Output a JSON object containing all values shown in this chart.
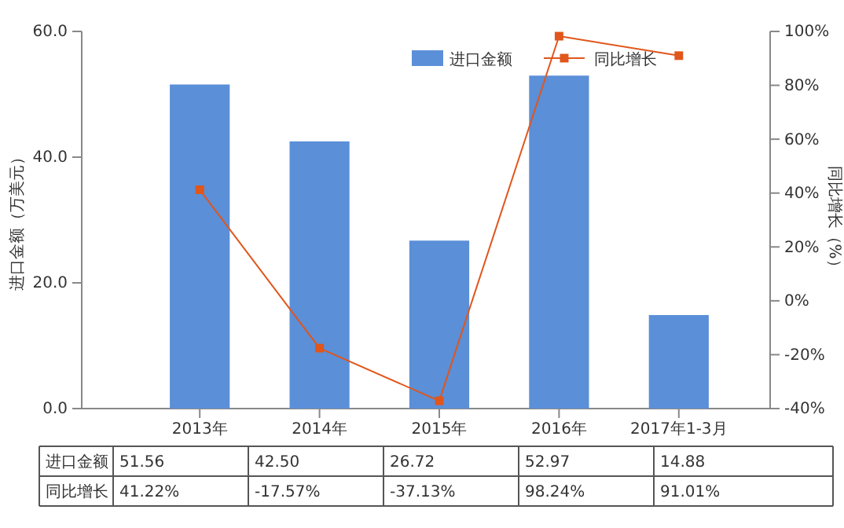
{
  "chart_data": {
    "type": "bar",
    "categories": [
      "2013年",
      "2014年",
      "2015年",
      "2016年",
      "2017年1-3月"
    ],
    "ylabel": "进口金额（万美元）",
    "y2label": "同比增长（%）",
    "ylim": [
      0,
      60
    ],
    "yticks": [
      {
        "value": 0,
        "label": "0.0"
      },
      {
        "value": 20,
        "label": "20.0"
      },
      {
        "value": 40,
        "label": "40.0"
      },
      {
        "value": 60,
        "label": "60.0"
      }
    ],
    "y2lim": [
      -40,
      100
    ],
    "y2ticks": [
      {
        "value": -40,
        "label": "-40%"
      },
      {
        "value": -20,
        "label": "-20%"
      },
      {
        "value": 0,
        "label": "0%"
      },
      {
        "value": 20,
        "label": "20%"
      },
      {
        "value": 40,
        "label": "40%"
      },
      {
        "value": 60,
        "label": "60%"
      },
      {
        "value": 80,
        "label": "80%"
      },
      {
        "value": 100,
        "label": "100%"
      }
    ],
    "legend": "top right",
    "marker": "square",
    "series": [
      {
        "name": "进口金额",
        "color": "#5b8fd8",
        "values": [
          51.56,
          42.5,
          26.72,
          52.97,
          14.88
        ],
        "value_labels": [
          "51.56",
          "42.50",
          "26.72",
          "52.97",
          "14.88"
        ]
      },
      {
        "name": "同比增长",
        "type": "line",
        "axis": "y2",
        "color": "#e0561b",
        "values": [
          41.22,
          -17.57,
          -37.13,
          98.24,
          91.01
        ],
        "value_labels": [
          "41.22%",
          "-17.57%",
          "-37.13%",
          "98.24%",
          "91.01%"
        ]
      }
    ]
  }
}
